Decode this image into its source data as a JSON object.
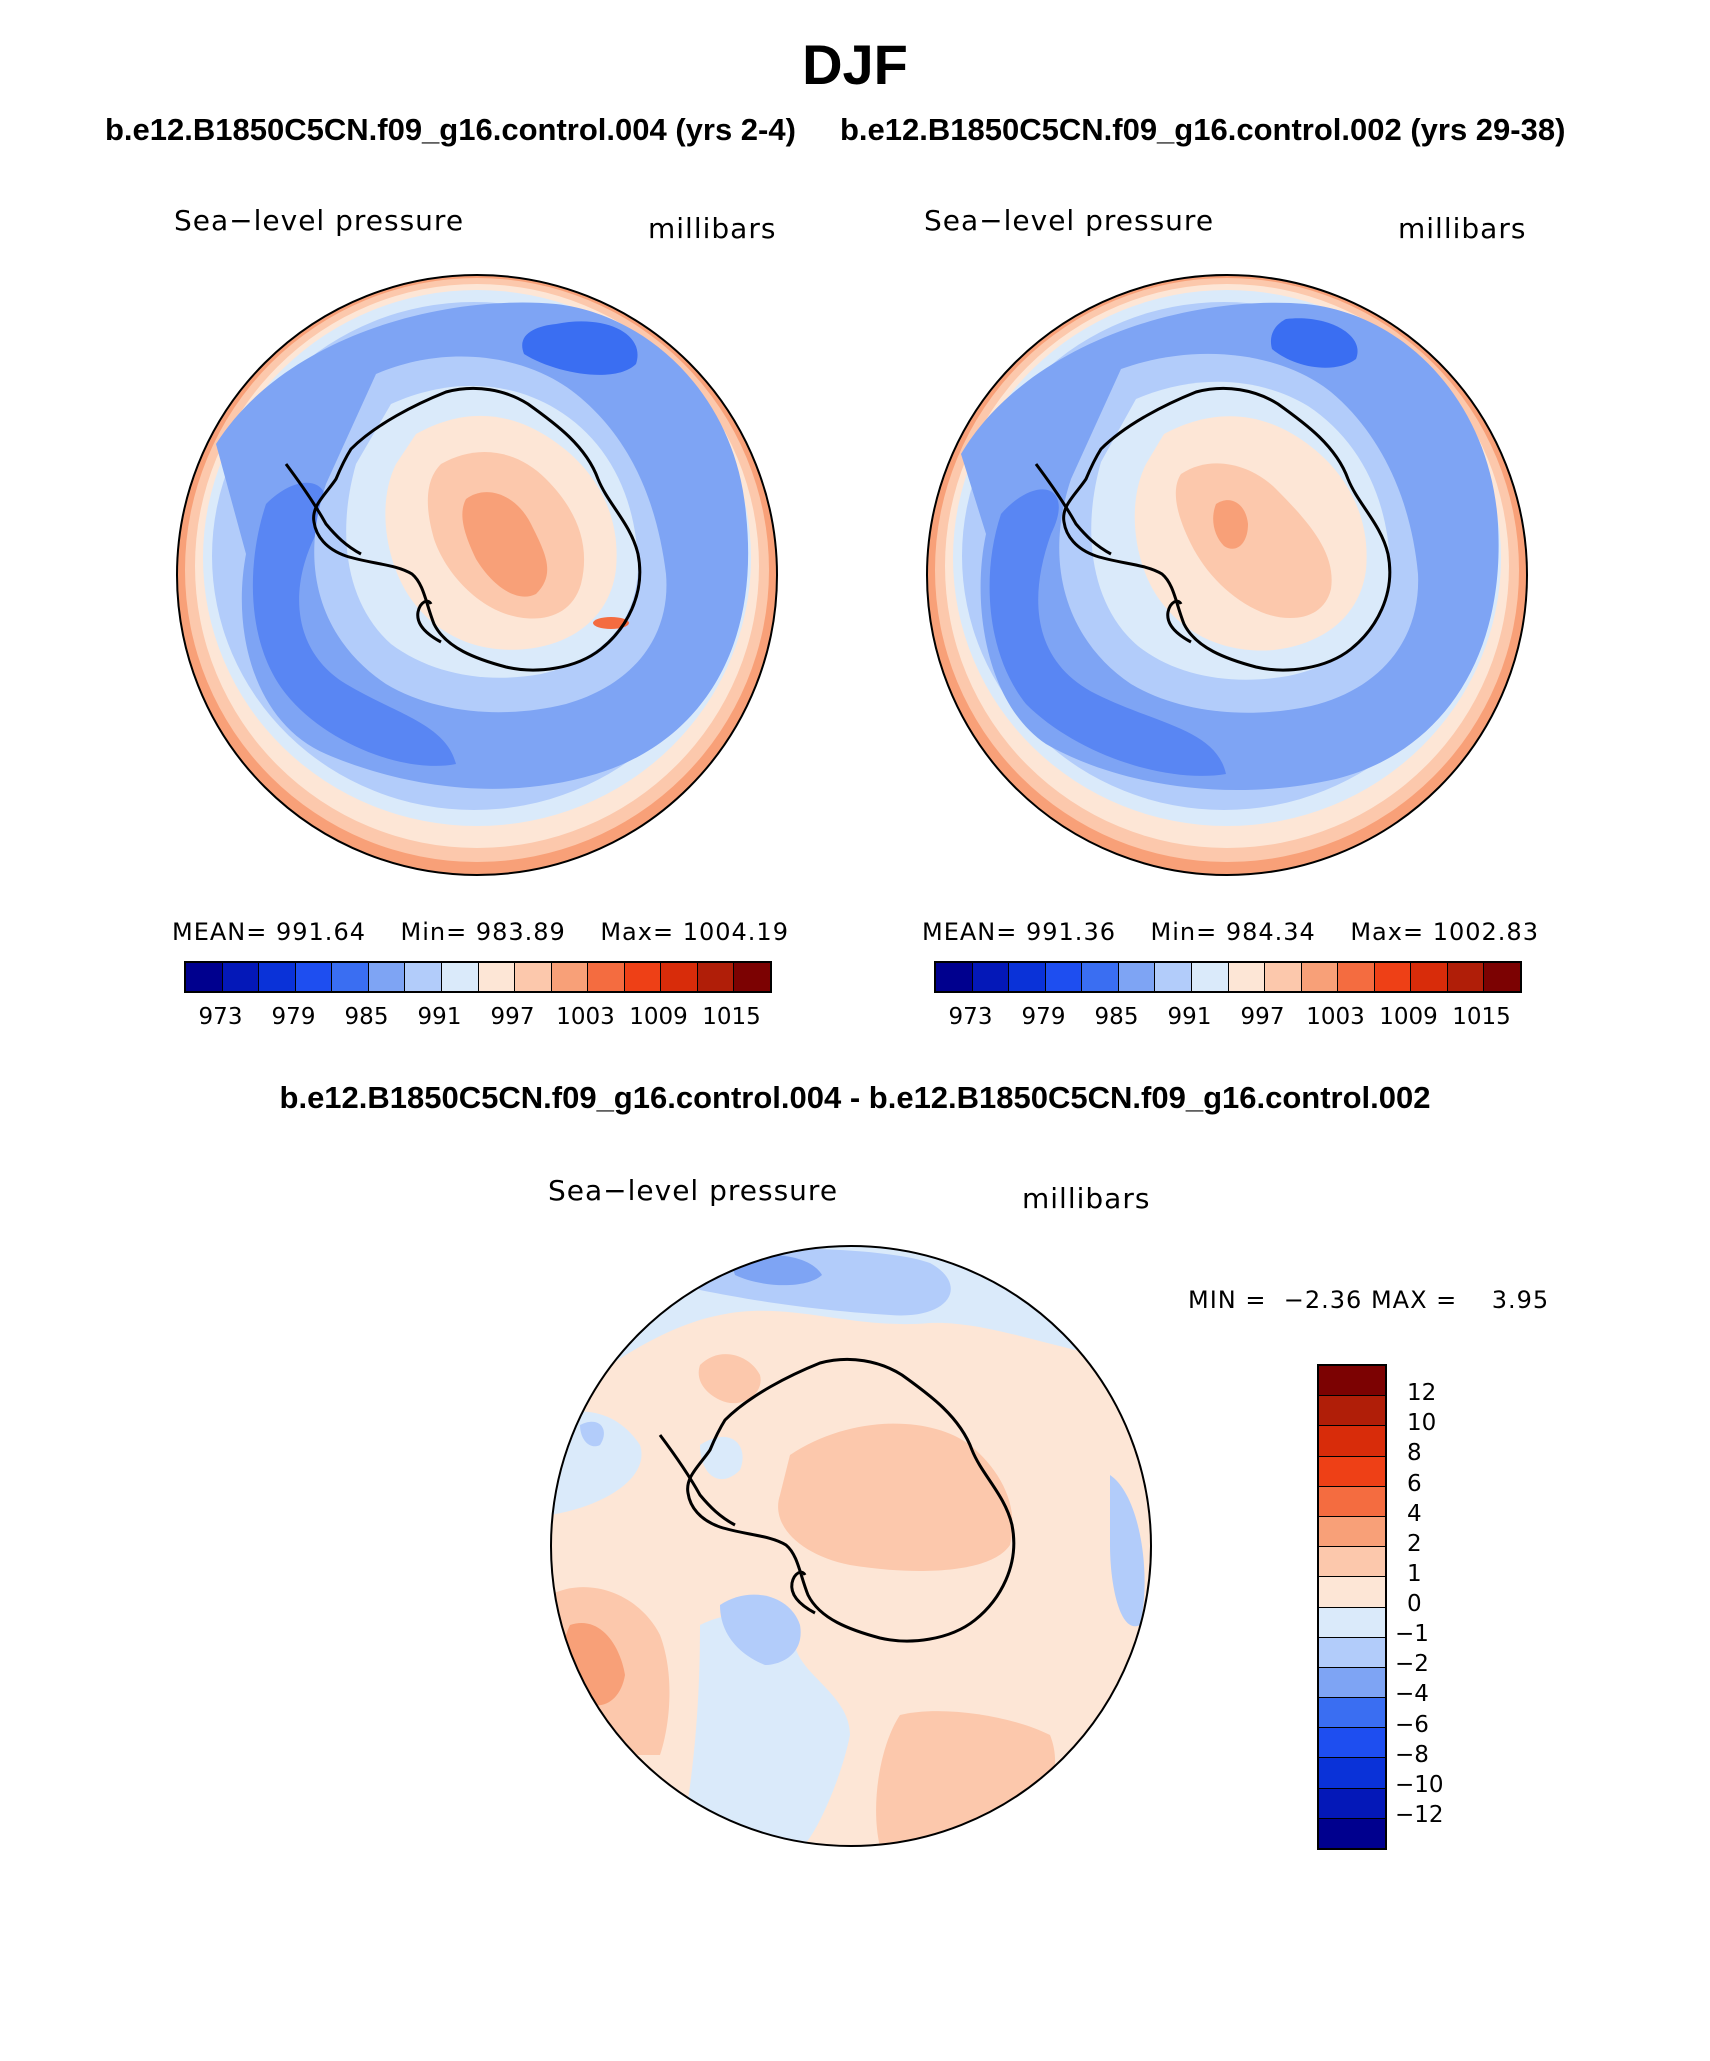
{
  "season": "DJF",
  "chart_data": [
    {
      "type": "heatmap",
      "panel": "case-1",
      "case_title": "b.e12.B1850C5CN.f09_g16.control.004 (yrs 2-4)",
      "variable": "Sea−level pressure",
      "units": "millibars",
      "projection": "south polar stereographic",
      "stats": {
        "mean_label": "MEAN=",
        "mean": "991.64",
        "min_label": "Min=",
        "min": "983.89",
        "max_label": "Max=",
        "max": "1004.19"
      },
      "levels": [
        973,
        976,
        979,
        982,
        985,
        988,
        991,
        994,
        997,
        1000,
        1003,
        1006,
        1009,
        1012,
        1015
      ],
      "tick_labels": [
        "973",
        "979",
        "985",
        "991",
        "997",
        "1003",
        "1009",
        "1015"
      ]
    },
    {
      "type": "heatmap",
      "panel": "case-2",
      "case_title": "b.e12.B1850C5CN.f09_g16.control.002 (yrs 29-38)",
      "variable": "Sea−level pressure",
      "units": "millibars",
      "projection": "south polar stereographic",
      "stats": {
        "mean_label": "MEAN=",
        "mean": "991.36",
        "min_label": "Min=",
        "min": "984.34",
        "max_label": "Max=",
        "max": "1002.83"
      },
      "levels": [
        973,
        976,
        979,
        982,
        985,
        988,
        991,
        994,
        997,
        1000,
        1003,
        1006,
        1009,
        1012,
        1015
      ],
      "tick_labels": [
        "973",
        "979",
        "985",
        "991",
        "997",
        "1003",
        "1009",
        "1015"
      ]
    },
    {
      "type": "heatmap",
      "panel": "difference",
      "case_title": "b.e12.B1850C5CN.f09_g16.control.004 - b.e12.B1850C5CN.f09_g16.control.002",
      "variable": "Sea−level pressure",
      "units": "millibars",
      "projection": "south polar stereographic",
      "stats": {
        "min_label": "MIN =",
        "min": "−2.36",
        "max_label": "MAX =",
        "max": "3.95"
      },
      "levels": [
        12,
        10,
        8,
        6,
        4,
        2,
        1,
        0,
        -1,
        -2,
        -4,
        -6,
        -8,
        -10,
        -12
      ],
      "tick_labels": [
        "12",
        "10",
        "8",
        "6",
        "4",
        "2",
        "1",
        "0",
        "−1",
        "−2",
        "−4",
        "−6",
        "−8",
        "−10",
        "−12"
      ]
    }
  ],
  "colors": {
    "slp_scale": [
      "#00008e",
      "#0418b8",
      "#0a32d8",
      "#1e4ef0",
      "#3a6ef2",
      "#7ea4f4",
      "#b2ccfa",
      "#daeafa",
      "#fde6d6",
      "#fcc8ac",
      "#f8a078",
      "#f46c40",
      "#ee4016",
      "#d82c0a",
      "#b01e08",
      "#7c0202"
    ],
    "diff_scale": [
      "#7c0202",
      "#b01e08",
      "#d82c0a",
      "#ee4016",
      "#f46c40",
      "#f8a078",
      "#fcc8ac",
      "#fde6d6",
      "#daeafa",
      "#b2ccfa",
      "#7ea4f4",
      "#3a6ef2",
      "#1e4ef0",
      "#0a32d8",
      "#0418b8",
      "#00008e"
    ]
  }
}
